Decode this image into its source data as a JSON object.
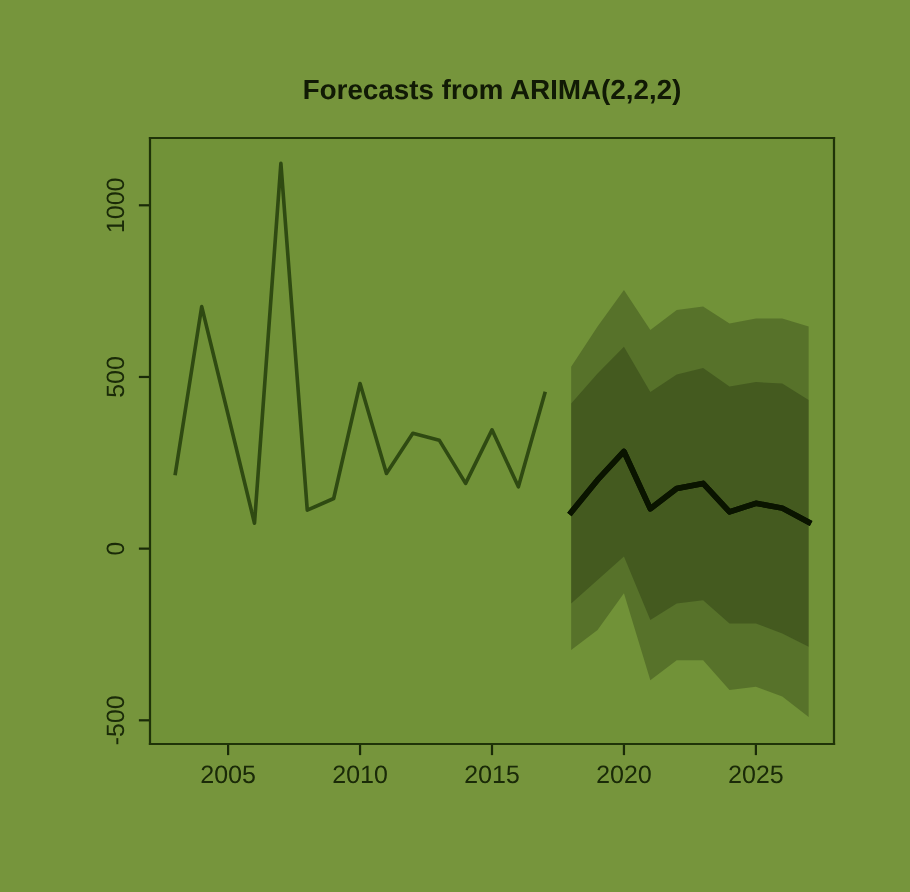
{
  "chart_data": {
    "type": "line",
    "title": "Forecasts from ARIMA(2,2,2)",
    "series": [
      {
        "color": "#2f4a12",
        "x": [
          2003,
          2004,
          2005,
          2006,
          2007,
          2008,
          2009,
          2010,
          2011,
          2012,
          2013,
          2014,
          2015,
          2016,
          2017
        ],
        "values": [
          219,
          705,
          390,
          74,
          1122,
          112,
          146,
          481,
          219,
          336,
          316,
          190,
          346,
          180,
          452
        ]
      },
      {
        "color": "#0a1400",
        "x": [
          2018,
          2019,
          2020,
          2021,
          2022,
          2023,
          2024,
          2025,
          2026,
          2027
        ],
        "values": [
          106,
          200,
          283,
          116,
          175,
          190,
          107,
          132,
          118,
          77
        ],
        "lower": [
          -295,
          -237,
          -130,
          -383,
          -325,
          -325,
          -412,
          -402,
          -431,
          -490
        ],
        "upper": [
          530,
          647,
          753,
          637,
          695,
          705,
          656,
          670,
          670,
          647
        ]
      },
      {
        "color": "#0a1400",
        "x": [
          2018,
          2019,
          2020,
          2021,
          2022,
          2023,
          2024,
          2025,
          2026,
          2027
        ],
        "values": [
          106,
          200,
          283,
          116,
          175,
          190,
          107,
          132,
          118,
          77
        ],
        "lower": [
          -160,
          -91,
          -23,
          -208,
          -160,
          -150,
          -218,
          -218,
          -247,
          -286
        ],
        "upper": [
          423,
          510,
          588,
          456,
          507,
          526,
          472,
          485,
          481,
          433
        ]
      }
    ],
    "xlim": [
      2002.04,
      2027.96
    ],
    "xticks": [
      2005,
      2010,
      2015,
      2020,
      2025
    ],
    "ylim": [
      -569,
      1196
    ],
    "yticks": [
      -500,
      0,
      500,
      1000
    ],
    "grid": false,
    "legend": false
  }
}
